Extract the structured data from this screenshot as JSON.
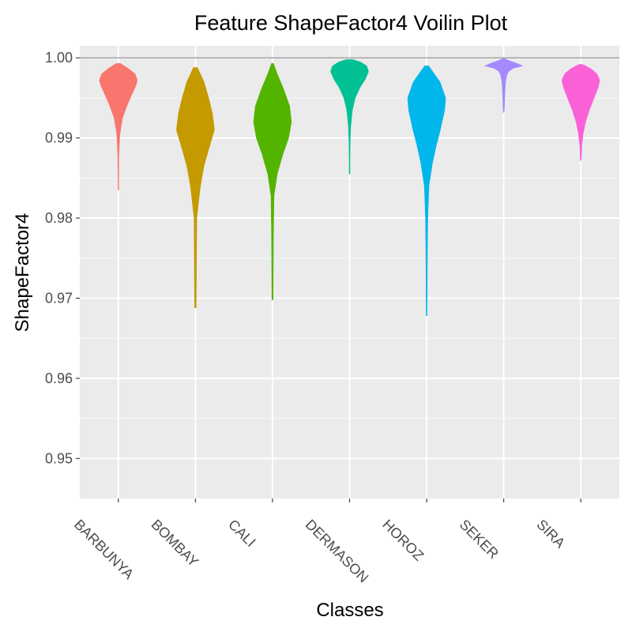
{
  "chart_data": {
    "type": "violin",
    "title": "Feature ShapeFactor4 Voilin Plot",
    "xlabel": "Classes",
    "ylabel": "ShapeFactor4",
    "ylim": [
      0.945,
      1.0015
    ],
    "yticks": [
      0.95,
      0.96,
      0.97,
      0.98,
      0.99,
      1.0
    ],
    "ytick_labels": [
      "0.95",
      "0.96",
      "0.97",
      "0.98",
      "0.99",
      "1.00"
    ],
    "reference_line": 1.0,
    "grid": true,
    "legend": "none",
    "categories": [
      "BARBUNYA",
      "BOMBAY",
      "CALI",
      "DERMASON",
      "HOROZ",
      "SEKER",
      "SIRA"
    ],
    "colors": [
      "#F8766D",
      "#C49A00",
      "#53B400",
      "#00C094",
      "#00B6EB",
      "#A58AFF",
      "#FB61D7"
    ],
    "series": [
      {
        "name": "BARBUNYA",
        "min": 0.9835,
        "max": 0.9993,
        "density_y": [
          0.9835,
          0.9855,
          0.988,
          0.9905,
          0.9925,
          0.994,
          0.9955,
          0.9965,
          0.9972,
          0.998,
          0.9987,
          0.9993
        ],
        "density_w": [
          0.01,
          0.02,
          0.03,
          0.08,
          0.22,
          0.45,
          0.72,
          0.92,
          1.0,
          0.88,
          0.5,
          0.1
        ]
      },
      {
        "name": "BOMBAY",
        "min": 0.9688,
        "max": 0.9988,
        "density_y": [
          0.9688,
          0.972,
          0.976,
          0.98,
          0.9838,
          0.9865,
          0.989,
          0.991,
          0.993,
          0.995,
          0.997,
          0.9988
        ],
        "density_w": [
          0.04,
          0.05,
          0.06,
          0.07,
          0.25,
          0.45,
          0.75,
          1.0,
          0.9,
          0.7,
          0.45,
          0.1
        ]
      },
      {
        "name": "CALI",
        "min": 0.9698,
        "max": 0.9993,
        "density_y": [
          0.9698,
          0.974,
          0.978,
          0.9828,
          0.9855,
          0.988,
          0.99,
          0.992,
          0.994,
          0.996,
          0.998,
          0.9993
        ],
        "density_w": [
          0.03,
          0.04,
          0.05,
          0.08,
          0.25,
          0.55,
          0.85,
          1.0,
          0.9,
          0.6,
          0.25,
          0.05
        ]
      },
      {
        "name": "DERMASON",
        "min": 0.9855,
        "max": 0.9998,
        "density_y": [
          0.9855,
          0.9875,
          0.9895,
          0.9915,
          0.9935,
          0.995,
          0.9963,
          0.9973,
          0.9983,
          0.999,
          0.9995,
          0.9998
        ],
        "density_w": [
          0.02,
          0.02,
          0.03,
          0.06,
          0.15,
          0.3,
          0.55,
          0.82,
          1.0,
          0.9,
          0.55,
          0.15
        ]
      },
      {
        "name": "HOROZ",
        "min": 0.9678,
        "max": 0.999,
        "density_y": [
          0.9678,
          0.972,
          0.976,
          0.98,
          0.984,
          0.9868,
          0.989,
          0.991,
          0.9935,
          0.995,
          0.997,
          0.999
        ],
        "density_w": [
          0.02,
          0.03,
          0.04,
          0.06,
          0.12,
          0.3,
          0.5,
          0.72,
          0.95,
          1.0,
          0.7,
          0.1
        ]
      },
      {
        "name": "SEKER",
        "min": 0.9932,
        "max": 0.9999,
        "density_y": [
          0.9932,
          0.9942,
          0.9955,
          0.9965,
          0.9972,
          0.9978,
          0.9983,
          0.9987,
          0.999,
          0.9993,
          0.9996,
          0.9999
        ],
        "density_w": [
          0.02,
          0.04,
          0.06,
          0.08,
          0.11,
          0.16,
          0.25,
          0.5,
          1.0,
          0.7,
          0.35,
          0.05
        ]
      },
      {
        "name": "SIRA",
        "min": 0.9872,
        "max": 0.9992,
        "density_y": [
          0.9872,
          0.989,
          0.9905,
          0.992,
          0.9935,
          0.995,
          0.9962,
          0.9972,
          0.998,
          0.9986,
          0.999,
          0.9992
        ],
        "density_w": [
          0.02,
          0.05,
          0.12,
          0.25,
          0.45,
          0.7,
          0.9,
          1.0,
          0.85,
          0.55,
          0.25,
          0.05
        ]
      }
    ]
  }
}
